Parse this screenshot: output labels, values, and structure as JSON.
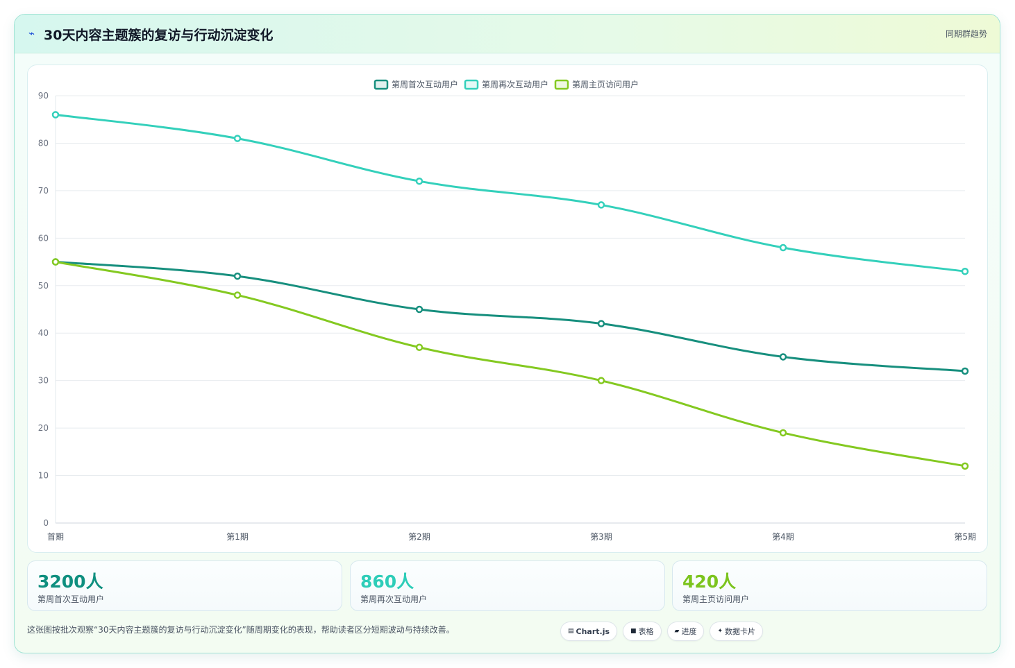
{
  "header": {
    "icon": "chart-line-icon",
    "title": "30天内容主题簇的复访与行动沉淀变化",
    "tag": "同期群趋势"
  },
  "chart_data": {
    "type": "line",
    "categories": [
      "首期",
      "第1期",
      "第2期",
      "第3期",
      "第4期",
      "第5期"
    ],
    "ylim": [
      0,
      90
    ],
    "yticks": [
      0,
      10,
      20,
      30,
      40,
      50,
      60,
      70,
      80,
      90
    ],
    "grid": true,
    "legend_position": "top-center",
    "series": [
      {
        "name": "第周首次互动用户",
        "color": "#178f7e",
        "values": [
          55,
          52,
          45,
          42,
          35,
          32
        ]
      },
      {
        "name": "第周再次互动用户",
        "color": "#34d0bb",
        "values": [
          86,
          81,
          72,
          67,
          58,
          53
        ]
      },
      {
        "name": "第周主页访问用户",
        "color": "#84c921",
        "values": [
          55,
          48,
          37,
          30,
          19,
          12
        ]
      }
    ]
  },
  "stats": [
    {
      "value": "3200人",
      "label": "第周首次互动用户",
      "color": "#0f8f7f"
    },
    {
      "value": "860人",
      "label": "第周再次互动用户",
      "color": "#2ecdb8"
    },
    {
      "value": "420人",
      "label": "第周主页访问用户",
      "color": "#7cc41e"
    }
  ],
  "footnote": "这张图按批次观察“30天内容主题簇的复访与行动沉淀变化”随周期变化的表现，帮助读者区分短期波动与持续改善。",
  "pills": [
    {
      "icon": "▤",
      "label": "Chart.js"
    },
    {
      "icon": "■",
      "label": "表格"
    },
    {
      "icon": "▰",
      "label": "进度"
    },
    {
      "icon": "✦",
      "label": "数据卡片"
    }
  ]
}
